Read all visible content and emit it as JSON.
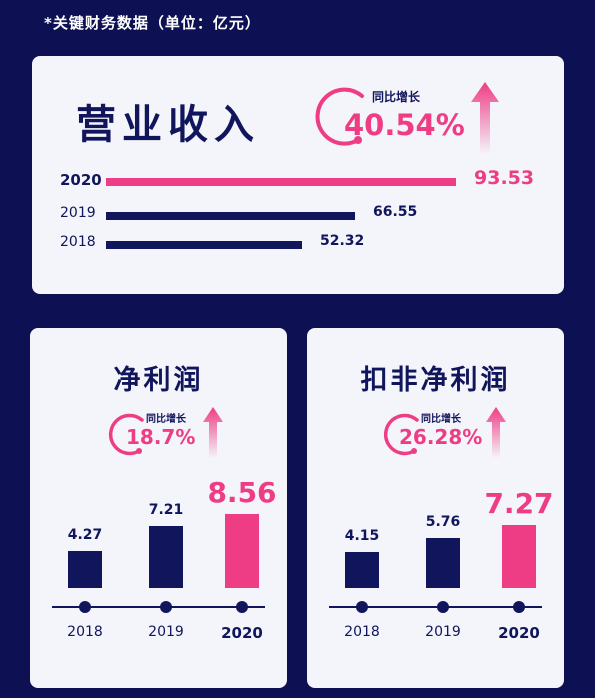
{
  "header": {
    "title": "*关键财务数据（单位：亿元）"
  },
  "colors": {
    "background": "#0d1153",
    "navy": "#11165c",
    "pink": "#ee3d84",
    "card": "#f4f4fb"
  },
  "revenue": {
    "title": "营业收入",
    "growth_label": "同比增长",
    "growth_value": "40.54%"
  },
  "net_profit": {
    "title": "净利润",
    "growth_label": "同比增长",
    "growth_value": "18.7%"
  },
  "deducted_profit": {
    "title": "扣非净利润",
    "growth_label": "同比增长",
    "growth_value": "26.28%"
  },
  "chart_data": [
    {
      "type": "bar",
      "orientation": "horizontal",
      "title": "营业收入",
      "categories": [
        "2020",
        "2019",
        "2018"
      ],
      "values": [
        93.53,
        66.55,
        52.32
      ],
      "value_labels": [
        "93.53",
        "66.55",
        "52.32"
      ],
      "highlight": "2020"
    },
    {
      "type": "bar",
      "title": "净利润",
      "categories": [
        "2018",
        "2019",
        "2020"
      ],
      "values": [
        4.27,
        7.21,
        8.56
      ],
      "value_labels": [
        "4.27",
        "7.21",
        "8.56"
      ],
      "highlight": "2020"
    },
    {
      "type": "bar",
      "title": "扣非净利润",
      "categories": [
        "2018",
        "2019",
        "2020"
      ],
      "values": [
        4.15,
        5.76,
        7.27
      ],
      "value_labels": [
        "4.15",
        "5.76",
        "7.27"
      ],
      "highlight": "2020"
    }
  ]
}
